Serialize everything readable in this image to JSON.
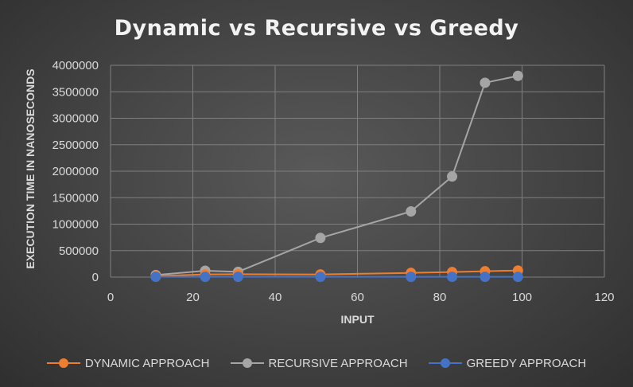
{
  "chart_data": {
    "type": "scatter",
    "title": "Dynamic vs Recursive vs Greedy",
    "xlabel": "INPUT",
    "ylabel": "EXECUTION TIME IN NANOSECONDS",
    "xlim": [
      0,
      120
    ],
    "ylim": [
      0,
      4000000
    ],
    "xticks": [
      0,
      20,
      40,
      60,
      80,
      100,
      120
    ],
    "yticks": [
      0,
      500000,
      1000000,
      1500000,
      2000000,
      2500000,
      3000000,
      3500000,
      4000000
    ],
    "grid": true,
    "legend_position": "bottom",
    "series": [
      {
        "name": "DYNAMIC APPROACH",
        "color": "#ed7d31",
        "x": [
          11,
          23,
          31,
          51,
          73,
          83,
          91,
          99
        ],
        "y": [
          20000,
          50000,
          55000,
          50000,
          80000,
          95000,
          110000,
          125000
        ]
      },
      {
        "name": "RECURSIVE APPROACH",
        "color": "#a5a5a5",
        "x": [
          11,
          23,
          31,
          51,
          73,
          83,
          91,
          99
        ],
        "y": [
          40000,
          120000,
          100000,
          740000,
          1240000,
          1900000,
          3670000,
          3800000
        ]
      },
      {
        "name": "GREEDY APPROACH",
        "color": "#4472c4",
        "x": [
          11,
          23,
          31,
          51,
          73,
          83,
          91,
          99
        ],
        "y": [
          5000,
          5000,
          5000,
          5000,
          5000,
          5000,
          5000,
          5000
        ]
      }
    ]
  },
  "colors": {
    "grid": "#7f7f7f",
    "axis_text": "#d9d9d9"
  }
}
